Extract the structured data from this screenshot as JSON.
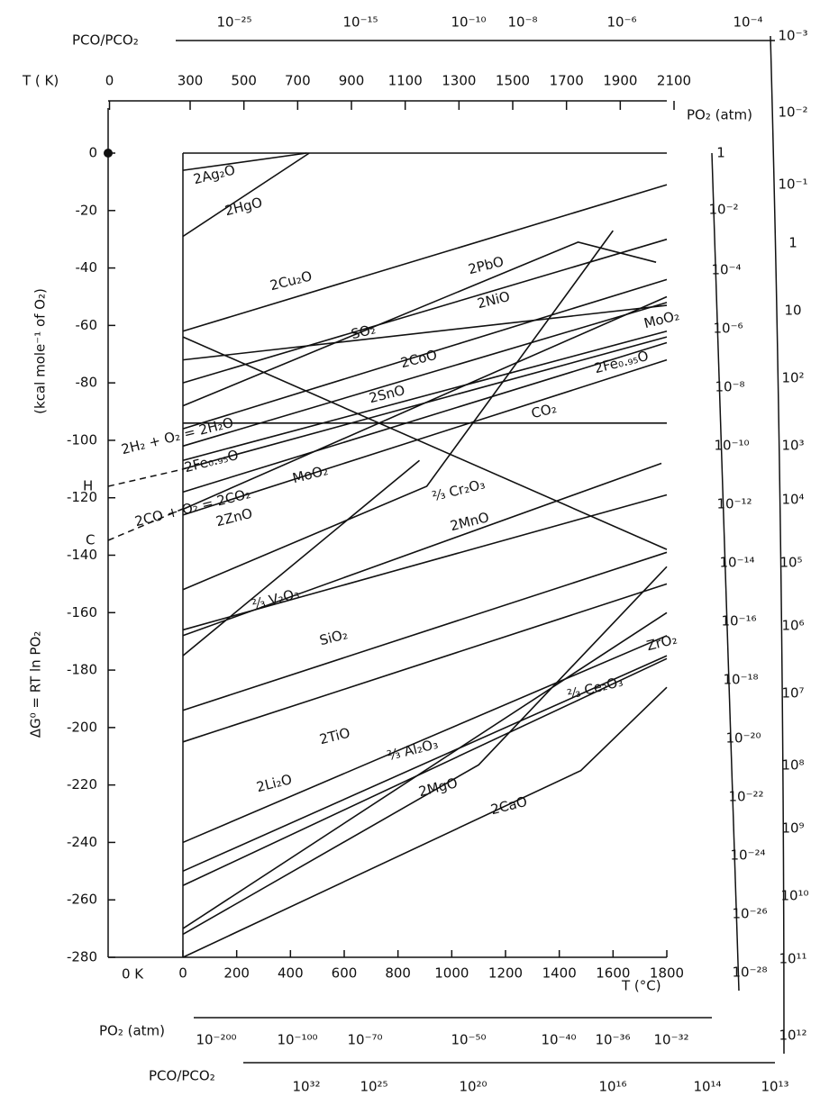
{
  "chart_data": {
    "type": "line",
    "x_label": "T (°C)",
    "y_label": "ΔG⁰ = RT ln PO₂",
    "y_unit_label": "(kcal mole⁻¹ of O₂)",
    "xlim": [
      0,
      1800
    ],
    "xticks": [
      0,
      200,
      400,
      600,
      800,
      1000,
      1200,
      1400,
      1600,
      1800
    ],
    "ylim": [
      -280,
      0
    ],
    "yticks": [
      0,
      -20,
      -40,
      -60,
      -80,
      -100,
      -120,
      -140,
      -160,
      -180,
      -200,
      -220,
      -240,
      -260,
      -280
    ],
    "top_axis": {
      "label": "T ( K)",
      "ticks": [
        0,
        300,
        500,
        700,
        900,
        1100,
        1300,
        1500,
        1700,
        1900,
        2100
      ]
    },
    "zero_k_label": "0 K",
    "annotations": [
      "2Fe₀.₉₅O",
      "H",
      "C"
    ],
    "scales": {
      "top_co": {
        "label": "PCO/PCO₂",
        "ticks": [
          "10⁻²⁵",
          "10⁻¹⁵",
          "10⁻¹⁰",
          "10⁻⁸",
          "10⁻⁶",
          "10⁻⁴"
        ]
      },
      "right_o2": {
        "label": "PO₂ (atm)",
        "ticks": [
          "1",
          "10⁻²",
          "10⁻⁴",
          "10⁻⁶",
          "10⁻⁸",
          "10⁻¹⁰",
          "10⁻¹²",
          "10⁻¹⁴",
          "10⁻¹⁶",
          "10⁻¹⁸",
          "10⁻²⁰",
          "10⁻²²",
          "10⁻²⁴",
          "10⁻²⁶",
          "10⁻²⁸"
        ]
      },
      "right_far": {
        "ticks": [
          "10⁻³",
          "10⁻²",
          "10⁻¹",
          "1",
          "10",
          "10²",
          "10³",
          "10⁴",
          "10⁵",
          "10⁶",
          "10⁷",
          "10⁸",
          "10⁹",
          "10¹⁰",
          "10¹¹",
          "10¹²"
        ]
      },
      "bottom_o2": {
        "label": "PO₂ (atm)",
        "ticks": [
          "10⁻²⁰⁰",
          "10⁻¹⁰⁰",
          "10⁻⁷⁰",
          "10⁻⁵⁰",
          "10⁻⁴⁰",
          "10⁻³⁶",
          "10⁻³²"
        ]
      },
      "bottom_co": {
        "label": "PCO/PCO₂",
        "ticks": [
          "10³²",
          "10²⁵",
          "10²⁰",
          "10¹⁶",
          "10¹⁴",
          "10¹³"
        ]
      }
    },
    "series": [
      {
        "name": "2Ag₂O",
        "color": "#111",
        "x": [
          0,
          460
        ],
        "values": [
          -6,
          0
        ]
      },
      {
        "name": "2HgO",
        "color": "#111",
        "x": [
          0,
          470
        ],
        "values": [
          -29,
          0
        ]
      },
      {
        "name": "2Cu₂O",
        "color": "#111",
        "x": [
          0,
          1800
        ],
        "values": [
          -62,
          -11
        ]
      },
      {
        "name": "2PbO",
        "color": "#111",
        "x": [
          0,
          1470,
          1760
        ],
        "values": [
          -88,
          -31,
          -38
        ]
      },
      {
        "name": "2NiO",
        "color": "#111",
        "x": [
          0,
          1800
        ],
        "values": [
          -80,
          -30
        ]
      },
      {
        "name": "SO₂",
        "color": "#111",
        "x": [
          0,
          1800
        ],
        "values": [
          -72,
          -53
        ]
      },
      {
        "name": "2CoO",
        "color": "#111",
        "x": [
          0,
          1800
        ],
        "values": [
          -96,
          -44
        ]
      },
      {
        "name": "MoO₂",
        "color": "#111",
        "x": [
          0,
          1800
        ],
        "values": [
          -102,
          -52
        ]
      },
      {
        "name": "2Fe₀.₉₅O",
        "color": "#111",
        "x": [
          0,
          1800
        ],
        "values": [
          -107,
          -62
        ]
      },
      {
        "name": "2SnO",
        "color": "#111",
        "x": [
          0,
          1800
        ],
        "values": [
          -118,
          -66
        ]
      },
      {
        "name": "2H₂ + O₂ = 2H₂O",
        "color": "#111",
        "x": [
          0,
          1800
        ],
        "values": [
          -110,
          -64
        ]
      },
      {
        "name": "CO₂",
        "color": "#111",
        "x": [
          0,
          1800
        ],
        "values": [
          -94,
          -94
        ]
      },
      {
        "name": "2CO + O₂ = 2CO₂",
        "color": "#111",
        "x": [
          0,
          1800
        ],
        "values": [
          -124,
          -50
        ]
      },
      {
        "color": "#111",
        "x": [
          0,
          1800
        ],
        "values": [
          -64,
          -138
        ]
      },
      {
        "name": "MoO₂",
        "color": "#111",
        "x": [
          0,
          1800
        ],
        "values": [
          -126,
          -72
        ]
      },
      {
        "name": "2ZnO",
        "color": "#111",
        "x": [
          0,
          907,
          1600
        ],
        "values": [
          -152,
          -116,
          -27
        ]
      },
      {
        "name": "⅔ Cr₂O₃",
        "color": "#111",
        "x": [
          0,
          1780
        ],
        "values": [
          -168,
          -108
        ]
      },
      {
        "name": "2MnO",
        "color": "#111",
        "x": [
          0,
          1800
        ],
        "values": [
          -166,
          -119
        ]
      },
      {
        "name": "⅔ V₂O₃",
        "color": "#111",
        "x": [
          0,
          880
        ],
        "values": [
          -175,
          -107
        ]
      },
      {
        "name": "SiO₂",
        "color": "#111",
        "x": [
          0,
          1800
        ],
        "values": [
          -194,
          -139
        ]
      },
      {
        "name": "2TiO",
        "color": "#111",
        "x": [
          0,
          1800
        ],
        "values": [
          -205,
          -150
        ]
      },
      {
        "name": "⅔ Al₂O₃",
        "color": "#111",
        "x": [
          0,
          1800
        ],
        "values": [
          -250,
          -175
        ]
      },
      {
        "name": "2MgO",
        "color": "#111",
        "x": [
          0,
          1100,
          1800
        ],
        "values": [
          -272,
          -213,
          -144
        ]
      },
      {
        "name": "2Li₂O",
        "color": "#111",
        "x": [
          0,
          1800
        ],
        "values": [
          -270,
          -160
        ]
      },
      {
        "name": "2CaO",
        "color": "#111",
        "x": [
          0,
          1480,
          1800
        ],
        "values": [
          -280,
          -215,
          -186
        ]
      },
      {
        "name": "ZrO₂",
        "color": "#111",
        "x": [
          0,
          1800
        ],
        "values": [
          -240,
          -168
        ]
      },
      {
        "name": "⅔ Ce₂O₃",
        "color": "#111",
        "x": [
          0,
          1800
        ],
        "values": [
          -255,
          -176
        ]
      }
    ]
  }
}
